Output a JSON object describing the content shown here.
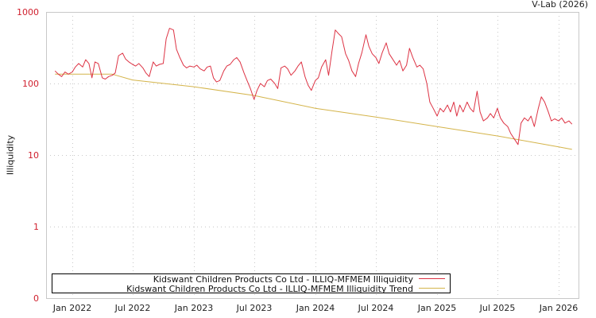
{
  "header": {
    "credit": "V-Lab (2026)"
  },
  "legend": {
    "items": [
      {
        "label": "Kidswant Children Products Co Ltd - ILLIQ-MFMEM Illiquidity",
        "color": "#dd3344"
      },
      {
        "label": "Kidswant Children Products Co Ltd - ILLIQ-MFMEM Illiquidity Trend",
        "color": "#d4b44a"
      }
    ]
  },
  "chart_data": {
    "type": "line",
    "title": "",
    "xlabel": "",
    "ylabel": "Illiquidity",
    "yscale": "log",
    "yticks": [
      "0",
      "1",
      "10",
      "100",
      "1000"
    ],
    "xticks": [
      "Jan 2022",
      "Jul 2022",
      "Jan 2023",
      "Jul 2023",
      "Jan 2024",
      "Jul 2024",
      "Jan 2025",
      "Jul 2025",
      "Jan 2026"
    ],
    "ylim": [
      0,
      1000
    ],
    "grid": true,
    "legend_position": "bottom-inside",
    "series": [
      {
        "name": "Kidswant Children Products Co Ltd - ILLIQ-MFMEM Illiquidity",
        "color": "#dd3344",
        "points": [
          [
            "2021-11-10",
            150
          ],
          [
            "2021-11-20",
            135
          ],
          [
            "2021-11-30",
            125
          ],
          [
            "2021-12-10",
            145
          ],
          [
            "2021-12-20",
            135
          ],
          [
            "2022-01-01",
            145
          ],
          [
            "2022-01-10",
            170
          ],
          [
            "2022-01-20",
            190
          ],
          [
            "2022-02-01",
            170
          ],
          [
            "2022-02-10",
            215
          ],
          [
            "2022-02-20",
            190
          ],
          [
            "2022-03-01",
            120
          ],
          [
            "2022-03-10",
            200
          ],
          [
            "2022-03-20",
            190
          ],
          [
            "2022-04-01",
            120
          ],
          [
            "2022-04-10",
            115
          ],
          [
            "2022-04-20",
            125
          ],
          [
            "2022-05-01",
            130
          ],
          [
            "2022-05-10",
            140
          ],
          [
            "2022-05-20",
            245
          ],
          [
            "2022-06-01",
            265
          ],
          [
            "2022-06-10",
            220
          ],
          [
            "2022-06-20",
            200
          ],
          [
            "2022-07-01",
            185
          ],
          [
            "2022-07-10",
            175
          ],
          [
            "2022-07-20",
            190
          ],
          [
            "2022-08-01",
            165
          ],
          [
            "2022-08-10",
            140
          ],
          [
            "2022-08-20",
            125
          ],
          [
            "2022-09-01",
            200
          ],
          [
            "2022-09-10",
            175
          ],
          [
            "2022-09-20",
            185
          ],
          [
            "2022-10-01",
            190
          ],
          [
            "2022-10-10",
            420
          ],
          [
            "2022-10-20",
            590
          ],
          [
            "2022-11-01",
            560
          ],
          [
            "2022-11-10",
            300
          ],
          [
            "2022-11-20",
            230
          ],
          [
            "2022-12-01",
            180
          ],
          [
            "2022-12-10",
            165
          ],
          [
            "2022-12-20",
            175
          ],
          [
            "2023-01-01",
            170
          ],
          [
            "2023-01-10",
            180
          ],
          [
            "2023-01-20",
            160
          ],
          [
            "2023-02-01",
            150
          ],
          [
            "2023-02-10",
            170
          ],
          [
            "2023-02-20",
            175
          ],
          [
            "2023-03-01",
            120
          ],
          [
            "2023-03-10",
            105
          ],
          [
            "2023-03-20",
            110
          ],
          [
            "2023-04-01",
            150
          ],
          [
            "2023-04-10",
            175
          ],
          [
            "2023-04-20",
            185
          ],
          [
            "2023-05-01",
            215
          ],
          [
            "2023-05-10",
            230
          ],
          [
            "2023-05-20",
            200
          ],
          [
            "2023-06-01",
            140
          ],
          [
            "2023-06-10",
            110
          ],
          [
            "2023-06-20",
            85
          ],
          [
            "2023-07-01",
            60
          ],
          [
            "2023-07-10",
            80
          ],
          [
            "2023-07-20",
            100
          ],
          [
            "2023-08-01",
            90
          ],
          [
            "2023-08-10",
            110
          ],
          [
            "2023-08-20",
            115
          ],
          [
            "2023-09-01",
            100
          ],
          [
            "2023-09-10",
            85
          ],
          [
            "2023-09-20",
            165
          ],
          [
            "2023-10-01",
            175
          ],
          [
            "2023-10-10",
            160
          ],
          [
            "2023-10-20",
            130
          ],
          [
            "2023-11-01",
            150
          ],
          [
            "2023-11-10",
            175
          ],
          [
            "2023-11-20",
            200
          ],
          [
            "2023-12-01",
            125
          ],
          [
            "2023-12-10",
            95
          ],
          [
            "2023-12-20",
            80
          ],
          [
            "2024-01-01",
            110
          ],
          [
            "2024-01-10",
            120
          ],
          [
            "2024-01-20",
            170
          ],
          [
            "2024-02-01",
            215
          ],
          [
            "2024-02-10",
            130
          ],
          [
            "2024-02-20",
            280
          ],
          [
            "2024-03-01",
            560
          ],
          [
            "2024-03-10",
            500
          ],
          [
            "2024-03-20",
            450
          ],
          [
            "2024-04-01",
            260
          ],
          [
            "2024-04-10",
            210
          ],
          [
            "2024-04-20",
            150
          ],
          [
            "2024-05-01",
            125
          ],
          [
            "2024-05-10",
            190
          ],
          [
            "2024-05-20",
            270
          ],
          [
            "2024-06-01",
            480
          ],
          [
            "2024-06-10",
            330
          ],
          [
            "2024-06-20",
            260
          ],
          [
            "2024-07-01",
            230
          ],
          [
            "2024-07-10",
            190
          ],
          [
            "2024-07-20",
            270
          ],
          [
            "2024-08-01",
            370
          ],
          [
            "2024-08-10",
            260
          ],
          [
            "2024-08-20",
            220
          ],
          [
            "2024-09-01",
            180
          ],
          [
            "2024-09-10",
            210
          ],
          [
            "2024-09-20",
            150
          ],
          [
            "2024-10-01",
            180
          ],
          [
            "2024-10-10",
            310
          ],
          [
            "2024-10-20",
            230
          ],
          [
            "2024-11-01",
            170
          ],
          [
            "2024-11-10",
            180
          ],
          [
            "2024-11-20",
            160
          ],
          [
            "2024-12-01",
            100
          ],
          [
            "2024-12-10",
            55
          ],
          [
            "2024-12-20",
            45
          ],
          [
            "2025-01-01",
            35
          ],
          [
            "2025-01-10",
            45
          ],
          [
            "2025-01-20",
            40
          ],
          [
            "2025-02-01",
            50
          ],
          [
            "2025-02-10",
            40
          ],
          [
            "2025-02-20",
            55
          ],
          [
            "2025-03-01",
            35
          ],
          [
            "2025-03-10",
            50
          ],
          [
            "2025-03-20",
            40
          ],
          [
            "2025-04-01",
            55
          ],
          [
            "2025-04-10",
            45
          ],
          [
            "2025-04-20",
            40
          ],
          [
            "2025-05-01",
            78
          ],
          [
            "2025-05-10",
            40
          ],
          [
            "2025-05-20",
            30
          ],
          [
            "2025-06-01",
            33
          ],
          [
            "2025-06-10",
            38
          ],
          [
            "2025-06-20",
            33
          ],
          [
            "2025-07-01",
            45
          ],
          [
            "2025-07-10",
            33
          ],
          [
            "2025-07-20",
            28
          ],
          [
            "2025-08-01",
            25
          ],
          [
            "2025-08-10",
            20
          ],
          [
            "2025-08-20",
            17
          ],
          [
            "2025-09-01",
            14
          ],
          [
            "2025-09-10",
            28
          ],
          [
            "2025-09-20",
            33
          ],
          [
            "2025-10-01",
            30
          ],
          [
            "2025-10-10",
            35
          ],
          [
            "2025-10-20",
            25
          ],
          [
            "2025-11-01",
            45
          ],
          [
            "2025-11-10",
            65
          ],
          [
            "2025-11-20",
            55
          ],
          [
            "2025-12-01",
            40
          ],
          [
            "2025-12-10",
            30
          ],
          [
            "2025-12-20",
            32
          ],
          [
            "2026-01-01",
            30
          ],
          [
            "2026-01-10",
            33
          ],
          [
            "2026-01-20",
            28
          ],
          [
            "2026-02-01",
            30
          ],
          [
            "2026-02-10",
            27
          ]
        ]
      },
      {
        "name": "Kidswant Children Products Co Ltd - ILLIQ-MFMEM Illiquidity Trend",
        "color": "#d4b44a",
        "points": [
          [
            "2021-11-10",
            135
          ],
          [
            "2022-01-01",
            135
          ],
          [
            "2022-05-01",
            135
          ],
          [
            "2022-07-01",
            112
          ],
          [
            "2023-01-01",
            90
          ],
          [
            "2023-07-01",
            68
          ],
          [
            "2024-01-01",
            45
          ],
          [
            "2024-07-01",
            34
          ],
          [
            "2025-01-01",
            25
          ],
          [
            "2025-07-01",
            18.5
          ],
          [
            "2026-01-01",
            13
          ],
          [
            "2026-02-10",
            12
          ]
        ]
      }
    ]
  }
}
